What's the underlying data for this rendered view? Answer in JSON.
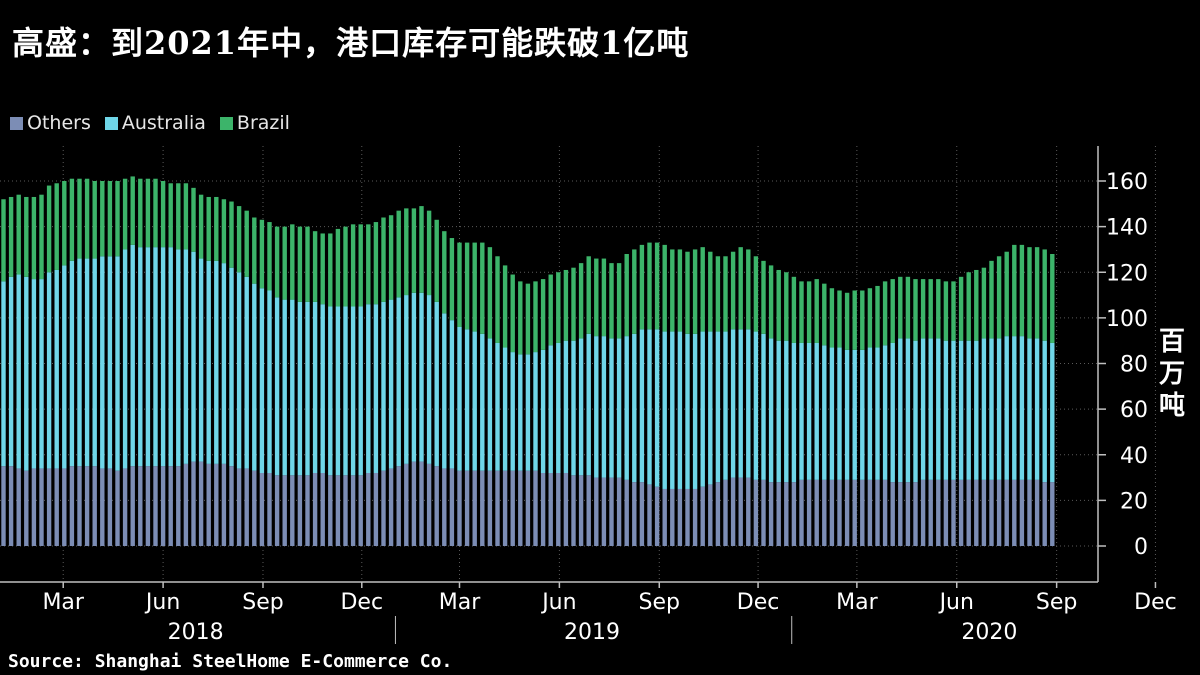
{
  "title": "高盛：到2021年中，港口库存可能跌破1亿吨",
  "source": "Source: Shanghai SteelHome E-Commerce Co.",
  "unit_chars": [
    "百",
    "万",
    "吨"
  ],
  "colors": {
    "background": "#000000",
    "others": "#7c8db5",
    "australia": "#6fd6e8",
    "brazil": "#3cb46a",
    "grid": "#5a5a5a",
    "axis": "#bfbfbf"
  },
  "chart_data": {
    "type": "bar",
    "stacked": true,
    "title": "高盛：到2021年中，港口库存可能跌破1亿吨",
    "ylabel": "百万吨",
    "ylim": [
      -15,
      170
    ],
    "yticks": [
      0,
      20,
      40,
      60,
      80,
      100,
      120,
      140,
      160
    ],
    "x_start": "2018-01-05",
    "frequency": "weekly",
    "month_ticks": [
      "Mar",
      "Jun",
      "Sep",
      "Dec",
      "Mar",
      "Jun",
      "Sep",
      "Dec",
      "Mar",
      "Jun",
      "Sep",
      "Dec"
    ],
    "year_labels": [
      "2018",
      "2019",
      "2020"
    ],
    "series": [
      {
        "name": "Others",
        "color": "#7c8db5"
      },
      {
        "name": "Australia",
        "color": "#6fd6e8"
      },
      {
        "name": "Brazil",
        "color": "#3cb46a"
      }
    ],
    "others": [
      35,
      35,
      34,
      33,
      34,
      34,
      34,
      34,
      34,
      35,
      35,
      35,
      35,
      34,
      34,
      33,
      34,
      35,
      35,
      35,
      35,
      35,
      35,
      35,
      36,
      37,
      37,
      36,
      36,
      36,
      35,
      34,
      34,
      33,
      32,
      32,
      31,
      31,
      31,
      31,
      31,
      32,
      32,
      31,
      31,
      31,
      31,
      31,
      32,
      32,
      33,
      34,
      35,
      36,
      37,
      37,
      36,
      35,
      34,
      34,
      33,
      33,
      33,
      33,
      33,
      33,
      33,
      33,
      33,
      33,
      33,
      32,
      32,
      32,
      32,
      31,
      31,
      31,
      30,
      30,
      30,
      30,
      29,
      28,
      28,
      27,
      26,
      25,
      25,
      25,
      25,
      25,
      26,
      27,
      28,
      29,
      30,
      30,
      30,
      29,
      29,
      28,
      28,
      28,
      28,
      29,
      29,
      29,
      29,
      29,
      29,
      29,
      29,
      29,
      29,
      29,
      29,
      28,
      28,
      28,
      28,
      29,
      29,
      29,
      29,
      29,
      29,
      29,
      29,
      29,
      29,
      29,
      29,
      29,
      29,
      29,
      29,
      28,
      28
    ],
    "australia": [
      81,
      83,
      85,
      85,
      83,
      83,
      86,
      87,
      89,
      90,
      91,
      91,
      91,
      93,
      93,
      94,
      96,
      97,
      96,
      96,
      96,
      96,
      96,
      95,
      94,
      92,
      89,
      89,
      89,
      88,
      87,
      86,
      84,
      82,
      81,
      80,
      78,
      77,
      77,
      76,
      76,
      75,
      74,
      74,
      74,
      74,
      74,
      74,
      74,
      74,
      74,
      74,
      74,
      74,
      74,
      74,
      74,
      72,
      68,
      65,
      63,
      62,
      61,
      60,
      58,
      56,
      54,
      52,
      51,
      51,
      52,
      54,
      56,
      57,
      58,
      59,
      60,
      62,
      62,
      62,
      61,
      61,
      63,
      65,
      67,
      68,
      69,
      69,
      69,
      69,
      68,
      68,
      68,
      67,
      66,
      65,
      65,
      65,
      65,
      65,
      64,
      63,
      62,
      62,
      61,
      60,
      60,
      60,
      59,
      58,
      58,
      57,
      57,
      57,
      58,
      58,
      59,
      61,
      63,
      63,
      62,
      62,
      62,
      62,
      61,
      61,
      61,
      61,
      61,
      62,
      62,
      62,
      63,
      63,
      63,
      62,
      62,
      62,
      61
    ],
    "brazil": [
      36,
      35,
      35,
      35,
      36,
      37,
      38,
      38,
      37,
      36,
      35,
      35,
      34,
      33,
      33,
      33,
      31,
      30,
      30,
      30,
      30,
      29,
      28,
      29,
      29,
      28,
      28,
      28,
      28,
      28,
      29,
      29,
      29,
      29,
      30,
      30,
      31,
      32,
      33,
      33,
      33,
      31,
      31,
      32,
      34,
      35,
      36,
      36,
      35,
      36,
      37,
      37,
      38,
      38,
      37,
      38,
      37,
      36,
      36,
      36,
      37,
      38,
      39,
      40,
      40,
      38,
      36,
      34,
      32,
      31,
      31,
      31,
      31,
      31,
      31,
      32,
      33,
      34,
      34,
      34,
      33,
      33,
      36,
      37,
      37,
      38,
      38,
      38,
      36,
      36,
      36,
      37,
      37,
      35,
      33,
      33,
      34,
      36,
      35,
      33,
      32,
      32,
      31,
      30,
      29,
      27,
      27,
      28,
      27,
      26,
      25,
      25,
      26,
      26,
      26,
      27,
      28,
      28,
      27,
      27,
      27,
      26,
      26,
      26,
      26,
      26,
      28,
      30,
      31,
      31,
      34,
      36,
      37,
      40,
      40,
      40,
      40,
      40,
      39
    ]
  }
}
